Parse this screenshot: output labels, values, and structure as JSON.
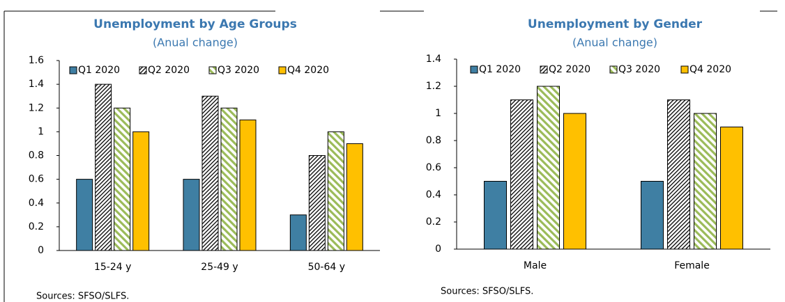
{
  "chart_data": [
    {
      "type": "bar",
      "title": "Unemployment by Age Groups",
      "subtitle": "(Anual change)",
      "categories": [
        "15-24 y",
        "25-49 y",
        "50-64 y"
      ],
      "series": [
        {
          "name": "Q1 2020",
          "color": "#3f7fa3",
          "hatch": false,
          "values": [
            0.6,
            0.6,
            0.3
          ]
        },
        {
          "name": "Q2 2020",
          "color": "#000000",
          "hatch": true,
          "values": [
            1.4,
            1.3,
            0.8
          ]
        },
        {
          "name": "Q3 2020",
          "color": "#9bbb59",
          "hatch": true,
          "values": [
            1.2,
            1.2,
            1.0
          ]
        },
        {
          "name": "Q4 2020",
          "color": "#ffc000",
          "hatch": false,
          "values": [
            1.0,
            1.1,
            0.9
          ]
        }
      ],
      "ylim": [
        0,
        1.6
      ],
      "yticks": [
        0,
        0.2,
        0.4,
        0.6,
        0.8,
        1,
        1.2,
        1.4,
        1.6
      ],
      "note": "Sources: SFSO/SLFS."
    },
    {
      "type": "bar",
      "title": "Unemployment by Gender",
      "subtitle": "(Anual change)",
      "categories": [
        "Male",
        "Female"
      ],
      "series": [
        {
          "name": "Q1 2020",
          "color": "#3f7fa3",
          "hatch": false,
          "values": [
            0.5,
            0.5
          ]
        },
        {
          "name": "Q2 2020",
          "color": "#000000",
          "hatch": true,
          "values": [
            1.1,
            1.1
          ]
        },
        {
          "name": "Q3 2020",
          "color": "#9bbb59",
          "hatch": true,
          "values": [
            1.2,
            1.0
          ]
        },
        {
          "name": "Q4 2020",
          "color": "#ffc000",
          "hatch": false,
          "values": [
            1.0,
            0.9
          ]
        }
      ],
      "ylim": [
        0,
        1.4
      ],
      "yticks": [
        0,
        0.2,
        0.4,
        0.6,
        0.8,
        1,
        1.2,
        1.4
      ],
      "note": "Sources: SFSO/SLFS."
    }
  ]
}
